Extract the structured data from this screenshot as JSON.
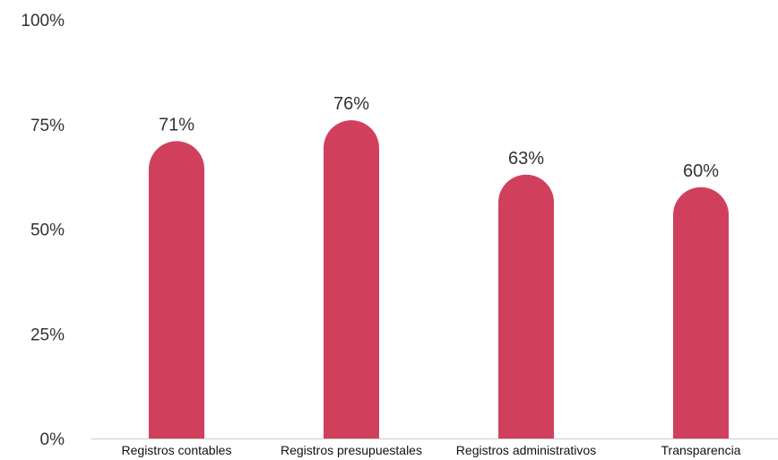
{
  "chart_data": {
    "type": "bar",
    "title": "",
    "xlabel": "",
    "ylabel": "",
    "categories": [
      "Registros contables",
      "Registros presupuestales",
      "Registros administrativos",
      "Transparencia"
    ],
    "values": [
      71,
      76,
      63,
      60
    ],
    "value_labels": [
      "71%",
      "76%",
      "63%",
      "60%"
    ],
    "ylim": [
      0,
      100
    ],
    "y_ticks": [
      0,
      25,
      50,
      75,
      100
    ],
    "y_tick_labels": [
      "0%",
      "25%",
      "50%",
      "75%",
      "100%"
    ],
    "grid": false,
    "legend": "none",
    "bar_color": "#d0405d",
    "axis_color": "#cccccc"
  }
}
